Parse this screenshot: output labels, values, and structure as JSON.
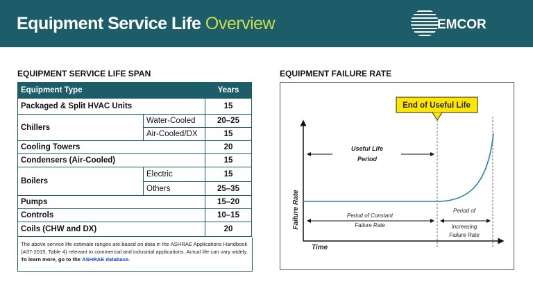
{
  "header": {
    "title": "Equipment Service Life",
    "title_accent": "Overview",
    "logo": "EMCOR"
  },
  "table": {
    "title": "EQUIPMENT SERVICE LIFE SPAN",
    "columns": [
      "Equipment Type",
      "Years"
    ],
    "rows": [
      {
        "type": "Packaged & Split HVAC Units",
        "years": 15
      },
      {
        "type": "Chillers",
        "sub": [
          {
            "name": "Water-Cooled",
            "years": "20–25"
          },
          {
            "name": "Air-Cooled/DX",
            "years": 15
          }
        ]
      },
      {
        "type": "Cooling Towers",
        "years": 20
      },
      {
        "type": "Condensers (Air-Cooled)",
        "years": 15
      },
      {
        "type": "Boilers",
        "sub": [
          {
            "name": "Electric",
            "years": 15
          },
          {
            "name": "Others",
            "years": "25–35"
          }
        ]
      },
      {
        "type": "Pumps",
        "years": "15–20"
      },
      {
        "type": "Controls",
        "years": "10–15"
      },
      {
        "type": "Coils (CHW and DX)",
        "years": 20
      }
    ],
    "note": {
      "text": "The above service life estimate ranges are based on data in the ASHRAE Applications Handbook (A37-2015, Table 4) relevant to commercial and industrial applications.  Actual life can vary widely.",
      "link_prefix": "To learn more, go to the",
      "link": "ASHRAE database."
    }
  },
  "diagram": {
    "title": "EQUIPMENT FAILURE RATE",
    "callout": "End of Useful Life",
    "useful_life": [
      "Useful Life",
      "Period"
    ],
    "y_axis": "Failure Rate",
    "x_axis": "Time",
    "constant": [
      "Period of Constant",
      "Failure Rate"
    ],
    "increasing": [
      "Period of",
      "Increasing",
      "Failure Rate"
    ]
  }
}
